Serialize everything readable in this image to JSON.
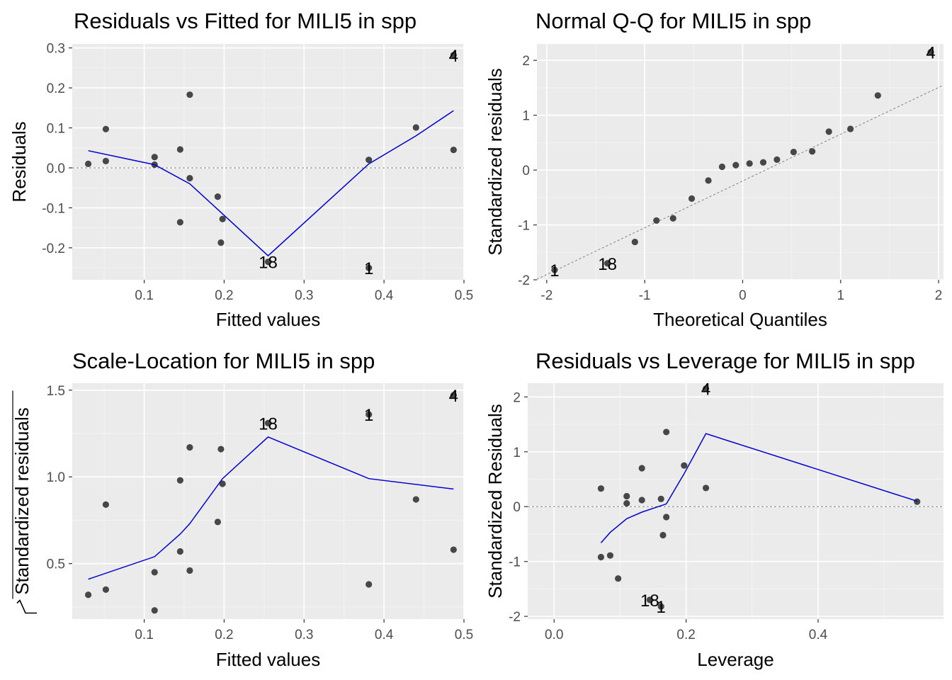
{
  "chart_data": [
    {
      "type": "scatter",
      "id": "rvf",
      "title": "Residuals vs Fitted for MILI5 in spp",
      "xlabel": "Fitted values",
      "ylabel": "Residuals",
      "xlim": [
        0.01,
        0.5
      ],
      "ylim": [
        -0.28,
        0.31
      ],
      "xticks": [
        0.1,
        0.2,
        0.3,
        0.4,
        0.5
      ],
      "xtick_labels": [
        "0.1",
        "0.2",
        "0.3",
        "0.4",
        "0.5"
      ],
      "yticks": [
        -0.2,
        -0.1,
        0.0,
        0.1,
        0.2,
        0.3
      ],
      "ytick_labels": [
        "-0.2",
        "-0.1",
        "0.0",
        "0.1",
        "0.2",
        "0.3"
      ],
      "hline": 0,
      "points": [
        [
          0.03,
          0.01
        ],
        [
          0.052,
          0.097
        ],
        [
          0.052,
          0.017
        ],
        [
          0.113,
          0.027
        ],
        [
          0.113,
          0.008
        ],
        [
          0.145,
          0.046
        ],
        [
          0.145,
          -0.136
        ],
        [
          0.157,
          0.183
        ],
        [
          0.157,
          -0.026
        ],
        [
          0.192,
          -0.072
        ],
        [
          0.196,
          -0.187
        ],
        [
          0.198,
          -0.128
        ],
        [
          0.255,
          -0.235
        ],
        [
          0.381,
          0.02
        ],
        [
          0.381,
          -0.25
        ],
        [
          0.44,
          0.101
        ],
        [
          0.487,
          0.045
        ],
        [
          0.487,
          0.282
        ]
      ],
      "smooth": [
        [
          0.03,
          0.043
        ],
        [
          0.113,
          0.008
        ],
        [
          0.157,
          -0.04
        ],
        [
          0.198,
          -0.115
        ],
        [
          0.255,
          -0.22
        ],
        [
          0.381,
          0.01
        ],
        [
          0.44,
          0.08
        ],
        [
          0.487,
          0.143
        ]
      ],
      "labels": [
        {
          "text": "4",
          "x": 0.487,
          "y": 0.282
        },
        {
          "text": "18",
          "x": 0.255,
          "y": -0.235
        },
        {
          "text": "1",
          "x": 0.381,
          "y": -0.25
        }
      ]
    },
    {
      "type": "scatter",
      "id": "qq",
      "title": "Normal Q-Q for MILI5 in spp",
      "xlabel": "Theoretical Quantiles",
      "ylabel": "Standardized residuals",
      "xlim": [
        -2.1,
        2.05
      ],
      "ylim": [
        -2.0,
        2.3
      ],
      "xticks": [
        -2,
        -1,
        0,
        1,
        2
      ],
      "xtick_labels": [
        "-2",
        "-1",
        "0",
        "1",
        "2"
      ],
      "yticks": [
        -2,
        -1,
        0,
        1,
        2
      ],
      "ytick_labels": [
        "-2",
        "-1",
        "0",
        "1",
        "2"
      ],
      "qqline": [
        [
          -2.1,
          -1.99
        ],
        [
          2.05,
          1.55
        ]
      ],
      "points": [
        [
          -1.92,
          -1.82
        ],
        [
          -1.38,
          -1.7
        ],
        [
          -1.1,
          -1.31
        ],
        [
          -0.88,
          -0.92
        ],
        [
          -0.71,
          -0.88
        ],
        [
          -0.52,
          -0.52
        ],
        [
          -0.35,
          -0.19
        ],
        [
          -0.21,
          0.06
        ],
        [
          -0.07,
          0.09
        ],
        [
          0.07,
          0.12
        ],
        [
          0.21,
          0.14
        ],
        [
          0.35,
          0.19
        ],
        [
          0.52,
          0.33
        ],
        [
          0.71,
          0.34
        ],
        [
          0.88,
          0.7
        ],
        [
          1.1,
          0.75
        ],
        [
          1.38,
          1.36
        ],
        [
          1.92,
          2.15
        ]
      ],
      "labels": [
        {
          "text": "4",
          "x": 1.92,
          "y": 2.15
        },
        {
          "text": "18",
          "x": -1.38,
          "y": -1.7
        },
        {
          "text": "1",
          "x": -1.92,
          "y": -1.82
        }
      ]
    },
    {
      "type": "scatter",
      "id": "sl",
      "title": "Scale-Location for MILI5 in spp",
      "xlabel": "Fitted values",
      "ylabel": "Standardized residuals",
      "xlim": [
        0.01,
        0.5
      ],
      "ylim": [
        0.18,
        1.54
      ],
      "xticks": [
        0.1,
        0.2,
        0.3,
        0.4,
        0.5
      ],
      "xtick_labels": [
        "0.1",
        "0.2",
        "0.3",
        "0.4",
        "0.5"
      ],
      "yticks": [
        0.5,
        1.0,
        1.5
      ],
      "ytick_labels": [
        "0.5",
        "1.0",
        "1.5"
      ],
      "points": [
        [
          0.03,
          0.32
        ],
        [
          0.052,
          0.84
        ],
        [
          0.052,
          0.35
        ],
        [
          0.113,
          0.45
        ],
        [
          0.113,
          0.23
        ],
        [
          0.145,
          0.98
        ],
        [
          0.145,
          0.57
        ],
        [
          0.157,
          1.17
        ],
        [
          0.157,
          0.46
        ],
        [
          0.192,
          0.74
        ],
        [
          0.196,
          1.16
        ],
        [
          0.198,
          0.96
        ],
        [
          0.255,
          1.31
        ],
        [
          0.381,
          1.36
        ],
        [
          0.381,
          0.38
        ],
        [
          0.44,
          0.87
        ],
        [
          0.487,
          0.58
        ],
        [
          0.487,
          1.47
        ]
      ],
      "smooth": [
        [
          0.03,
          0.41
        ],
        [
          0.113,
          0.54
        ],
        [
          0.145,
          0.67
        ],
        [
          0.157,
          0.73
        ],
        [
          0.198,
          0.99
        ],
        [
          0.255,
          1.23
        ],
        [
          0.381,
          0.99
        ],
        [
          0.487,
          0.93
        ]
      ],
      "labels": [
        {
          "text": "4",
          "x": 0.487,
          "y": 1.47
        },
        {
          "text": "18",
          "x": 0.255,
          "y": 1.31
        },
        {
          "text": "1",
          "x": 0.381,
          "y": 1.36
        }
      ]
    },
    {
      "type": "scatter",
      "id": "rvl",
      "title": "Residuals vs Leverage for MILI5 in spp",
      "xlabel": "Leverage",
      "ylabel": "Standardized Residuals",
      "xlim": [
        -0.04,
        0.59
      ],
      "ylim": [
        -2.05,
        2.25
      ],
      "xticks": [
        0.0,
        0.2,
        0.4
      ],
      "xtick_labels": [
        "0.0",
        "0.2",
        "0.4"
      ],
      "yticks": [
        -2,
        -1,
        0,
        1,
        2
      ],
      "ytick_labels": [
        "-2",
        "-1",
        "0",
        "1",
        "2"
      ],
      "hline": 0,
      "points": [
        [
          0.071,
          0.33
        ],
        [
          0.071,
          -0.92
        ],
        [
          0.085,
          -0.89
        ],
        [
          0.097,
          -1.31
        ],
        [
          0.11,
          0.19
        ],
        [
          0.11,
          0.06
        ],
        [
          0.133,
          0.7
        ],
        [
          0.133,
          0.12
        ],
        [
          0.145,
          -1.7
        ],
        [
          0.162,
          0.14
        ],
        [
          0.162,
          -1.82
        ],
        [
          0.165,
          -0.52
        ],
        [
          0.17,
          1.36
        ],
        [
          0.17,
          -0.19
        ],
        [
          0.197,
          0.75
        ],
        [
          0.23,
          2.15
        ],
        [
          0.23,
          0.34
        ],
        [
          0.55,
          0.09
        ]
      ],
      "smooth": [
        [
          0.071,
          -0.66
        ],
        [
          0.085,
          -0.47
        ],
        [
          0.11,
          -0.22
        ],
        [
          0.133,
          -0.1
        ],
        [
          0.17,
          0.05
        ],
        [
          0.197,
          0.6
        ],
        [
          0.23,
          1.33
        ],
        [
          0.55,
          0.1
        ]
      ],
      "labels": [
        {
          "text": "4",
          "x": 0.23,
          "y": 2.15
        },
        {
          "text": "18",
          "x": 0.145,
          "y": -1.7
        },
        {
          "text": "1",
          "x": 0.162,
          "y": -1.82
        }
      ]
    }
  ],
  "colors": {
    "panel_bg": "#ebebeb",
    "grid_major": "#ffffff",
    "grid_minor": "#f4f4f4",
    "point": "#474747",
    "smooth": "#0000cd",
    "refline": "#7f7f7f",
    "tick_text": "#4d4d4d",
    "text": "#000000"
  }
}
